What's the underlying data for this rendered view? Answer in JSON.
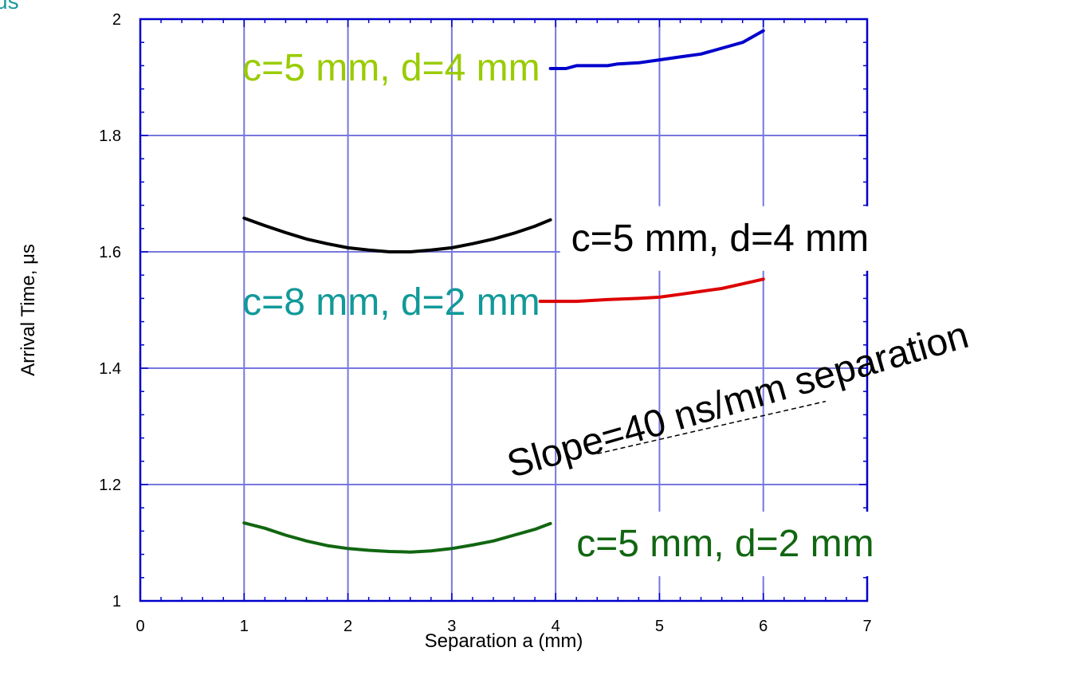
{
  "corner_fragment": "us",
  "chart_data": {
    "type": "line",
    "xlabel": "Separation a (mm)",
    "ylabel": "Arrival Time, μs",
    "xlim": [
      0,
      7
    ],
    "ylim": [
      1,
      2
    ],
    "x_ticks": [
      0,
      1,
      2,
      3,
      4,
      5,
      6,
      7
    ],
    "y_ticks": [
      1,
      1.2,
      1.4,
      1.6,
      1.8,
      2
    ],
    "y_tick_labels": [
      "1",
      "1.2",
      "1.4",
      "1.6",
      "1.8",
      "2"
    ],
    "grid": true,
    "series": [
      {
        "color": "#0000cc",
        "points": [
          [
            3.95,
            1.915
          ],
          [
            4.1,
            1.915
          ],
          [
            4.2,
            1.92
          ],
          [
            4.5,
            1.92
          ],
          [
            4.6,
            1.923
          ],
          [
            4.8,
            1.925
          ],
          [
            5.0,
            1.93
          ],
          [
            5.2,
            1.935
          ],
          [
            5.4,
            1.94
          ],
          [
            5.6,
            1.95
          ],
          [
            5.8,
            1.96
          ],
          [
            6.0,
            1.98
          ]
        ]
      },
      {
        "color": "#000000",
        "points": [
          [
            1.0,
            1.658
          ],
          [
            1.2,
            1.645
          ],
          [
            1.4,
            1.633
          ],
          [
            1.6,
            1.622
          ],
          [
            1.8,
            1.614
          ],
          [
            2.0,
            1.607
          ],
          [
            2.2,
            1.603
          ],
          [
            2.4,
            1.6
          ],
          [
            2.6,
            1.6
          ],
          [
            2.8,
            1.603
          ],
          [
            3.0,
            1.607
          ],
          [
            3.2,
            1.614
          ],
          [
            3.4,
            1.622
          ],
          [
            3.6,
            1.632
          ],
          [
            3.8,
            1.644
          ],
          [
            3.95,
            1.655
          ]
        ]
      },
      {
        "color": "#dd0000",
        "points": [
          [
            3.85,
            1.515
          ],
          [
            4.2,
            1.515
          ],
          [
            4.5,
            1.518
          ],
          [
            4.8,
            1.52
          ],
          [
            5.0,
            1.522
          ],
          [
            5.2,
            1.527
          ],
          [
            5.4,
            1.532
          ],
          [
            5.6,
            1.537
          ],
          [
            5.8,
            1.545
          ],
          [
            6.0,
            1.553
          ]
        ]
      },
      {
        "color": "#116611",
        "points": [
          [
            1.0,
            1.134
          ],
          [
            1.2,
            1.125
          ],
          [
            1.4,
            1.113
          ],
          [
            1.6,
            1.103
          ],
          [
            1.8,
            1.095
          ],
          [
            2.0,
            1.09
          ],
          [
            2.2,
            1.087
          ],
          [
            2.4,
            1.085
          ],
          [
            2.6,
            1.084
          ],
          [
            2.8,
            1.086
          ],
          [
            3.0,
            1.09
          ],
          [
            3.2,
            1.096
          ],
          [
            3.4,
            1.103
          ],
          [
            3.6,
            1.113
          ],
          [
            3.8,
            1.123
          ],
          [
            3.95,
            1.133
          ]
        ]
      }
    ],
    "annotations": [
      {
        "text": "c=5 mm, d=4 mm",
        "color": "#99cc00",
        "x": 3.85,
        "y": 1.918,
        "anchor": "end",
        "box": false
      },
      {
        "text": "c=5 mm, d=4 mm",
        "color": "#000000",
        "x": 4.15,
        "y": 1.625,
        "anchor": "start",
        "box": true
      },
      {
        "text": "c=8 mm, d=2 mm",
        "color": "#119999",
        "x": 3.85,
        "y": 1.515,
        "anchor": "end",
        "box": false
      },
      {
        "text": "c=5 mm, d=2 mm",
        "color": "#116611",
        "x": 4.2,
        "y": 1.1,
        "anchor": "start",
        "box": true
      }
    ],
    "slope_label": "Slope=40 ns/mm separation",
    "slope_line": [
      [
        4.4,
        1.253
      ],
      [
        6.6,
        1.343
      ]
    ]
  }
}
